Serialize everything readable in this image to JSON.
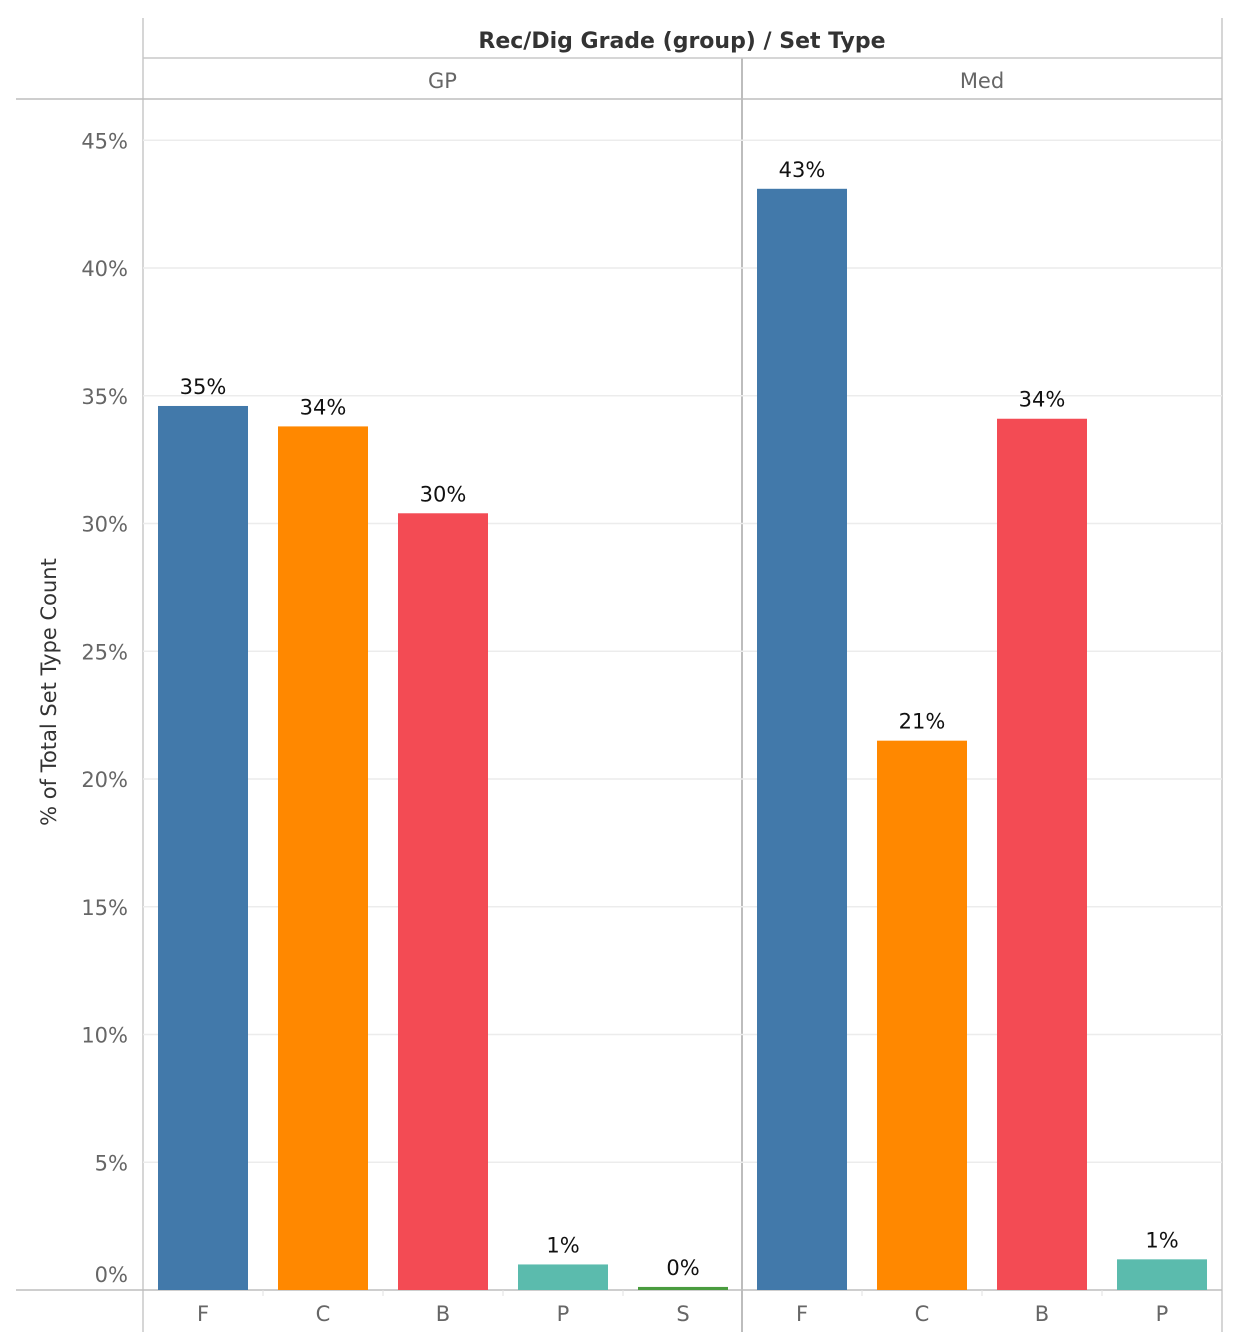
{
  "chart_data": {
    "type": "bar",
    "title": "Rec/Dig Grade (group)  /  Set Type",
    "ylabel": "% of Total Set Type Count",
    "ylim": [
      0,
      47
    ],
    "yticks": [
      {
        "value": 0,
        "label": "0%"
      },
      {
        "value": 5,
        "label": "5%"
      },
      {
        "value": 10,
        "label": "10%"
      },
      {
        "value": 15,
        "label": "15%"
      },
      {
        "value": 20,
        "label": "20%"
      },
      {
        "value": 25,
        "label": "25%"
      },
      {
        "value": 30,
        "label": "30%"
      },
      {
        "value": 35,
        "label": "35%"
      },
      {
        "value": 40,
        "label": "40%"
      },
      {
        "value": 45,
        "label": "45%"
      }
    ],
    "grid": true,
    "colors": {
      "F": "#4279AA",
      "C": "#FF8800",
      "B": "#F34B54",
      "P": "#5BBBAD",
      "S": "#4A9C3F"
    },
    "groups": [
      {
        "name": "GP",
        "bars": [
          {
            "category": "F",
            "value": 34.6,
            "label": "35%"
          },
          {
            "category": "C",
            "value": 33.8,
            "label": "34%"
          },
          {
            "category": "B",
            "value": 30.4,
            "label": "30%"
          },
          {
            "category": "P",
            "value": 1.0,
            "label": "1%"
          },
          {
            "category": "S",
            "value": 0.12,
            "label": "0%"
          }
        ]
      },
      {
        "name": "Med",
        "bars": [
          {
            "category": "F",
            "value": 43.1,
            "label": "43%"
          },
          {
            "category": "C",
            "value": 21.5,
            "label": "21%"
          },
          {
            "category": "B",
            "value": 34.1,
            "label": "34%"
          },
          {
            "category": "P",
            "value": 1.2,
            "label": "1%"
          }
        ]
      }
    ]
  }
}
